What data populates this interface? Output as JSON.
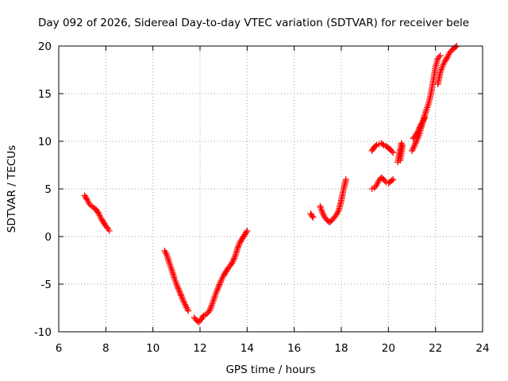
{
  "chart_data": {
    "type": "scatter",
    "title": "Day 092 of 2026, Sidereal Day-to-day VTEC variation (SDTVAR) for receiver bele",
    "xlabel": "GPS time / hours",
    "ylabel": "SDTVAR / TECUs",
    "xlim": [
      6,
      24
    ],
    "ylim": [
      -10,
      20
    ],
    "xticks": [
      "6",
      "8",
      "10",
      "12",
      "14",
      "16",
      "18",
      "20",
      "22",
      "24"
    ],
    "yticks": [
      "-10",
      "-5",
      "0",
      "5",
      "10",
      "15",
      "20"
    ],
    "grid": true,
    "marker_color": "#ff0000",
    "series": [
      {
        "name": "SDTVAR",
        "segments": [
          [
            [
              7.1,
              4.3
            ],
            [
              7.2,
              3.9
            ],
            [
              7.3,
              3.4
            ],
            [
              7.5,
              3.0
            ],
            [
              7.6,
              2.8
            ],
            [
              7.7,
              2.4
            ],
            [
              7.8,
              1.9
            ],
            [
              7.9,
              1.5
            ],
            [
              8.0,
              1.1
            ],
            [
              8.1,
              0.8
            ],
            [
              8.15,
              0.6
            ]
          ],
          [
            [
              10.5,
              -1.5
            ],
            [
              10.6,
              -2.0
            ],
            [
              10.7,
              -2.8
            ],
            [
              10.8,
              -3.5
            ],
            [
              10.9,
              -4.3
            ],
            [
              11.0,
              -5.0
            ],
            [
              11.1,
              -5.6
            ],
            [
              11.2,
              -6.2
            ],
            [
              11.3,
              -6.8
            ],
            [
              11.4,
              -7.3
            ],
            [
              11.5,
              -7.8
            ]
          ],
          [
            [
              11.75,
              -8.5
            ],
            [
              11.85,
              -8.8
            ],
            [
              11.95,
              -9.0
            ],
            [
              12.05,
              -8.7
            ],
            [
              12.15,
              -8.3
            ],
            [
              12.3,
              -8.1
            ],
            [
              12.4,
              -7.8
            ],
            [
              12.5,
              -7.2
            ],
            [
              12.6,
              -6.5
            ],
            [
              12.7,
              -5.8
            ],
            [
              12.8,
              -5.2
            ],
            [
              12.9,
              -4.6
            ],
            [
              13.0,
              -4.1
            ],
            [
              13.1,
              -3.7
            ],
            [
              13.2,
              -3.3
            ],
            [
              13.3,
              -3.0
            ],
            [
              13.4,
              -2.6
            ],
            [
              13.5,
              -2.0
            ],
            [
              13.6,
              -1.2
            ],
            [
              13.7,
              -0.6
            ],
            [
              13.8,
              -0.2
            ],
            [
              13.9,
              0.2
            ],
            [
              14.0,
              0.6
            ]
          ],
          [
            [
              16.7,
              2.4
            ],
            [
              16.8,
              2.0
            ]
          ],
          [
            [
              17.1,
              3.2
            ],
            [
              17.2,
              2.5
            ],
            [
              17.3,
              2.0
            ],
            [
              17.4,
              1.7
            ],
            [
              17.5,
              1.5
            ],
            [
              17.6,
              1.7
            ],
            [
              17.7,
              2.0
            ],
            [
              17.8,
              2.3
            ],
            [
              17.9,
              2.8
            ],
            [
              18.0,
              3.8
            ],
            [
              18.1,
              5.0
            ],
            [
              18.2,
              6.0
            ]
          ],
          [
            [
              19.3,
              5.0
            ],
            [
              19.4,
              5.1
            ],
            [
              19.5,
              5.4
            ],
            [
              19.6,
              5.9
            ],
            [
              19.7,
              6.2
            ],
            [
              19.8,
              6.0
            ],
            [
              19.9,
              5.7
            ],
            [
              20.0,
              5.6
            ],
            [
              20.1,
              5.8
            ],
            [
              20.2,
              6.0
            ]
          ],
          [
            [
              19.3,
              9.0
            ],
            [
              19.4,
              9.4
            ],
            [
              19.5,
              9.6
            ],
            [
              19.6,
              9.7
            ],
            [
              19.7,
              9.8
            ],
            [
              19.8,
              9.6
            ],
            [
              19.9,
              9.5
            ],
            [
              20.0,
              9.3
            ],
            [
              20.1,
              9.1
            ],
            [
              20.2,
              8.8
            ]
          ],
          [
            [
              20.4,
              7.8
            ],
            [
              20.45,
              8.5
            ],
            [
              20.5,
              9.2
            ],
            [
              20.55,
              9.8
            ],
            [
              20.6,
              9.5
            ],
            [
              20.5,
              8.0
            ]
          ],
          [
            [
              21.0,
              9.0
            ],
            [
              21.1,
              9.5
            ],
            [
              21.2,
              10.1
            ],
            [
              21.3,
              10.6
            ],
            [
              21.4,
              11.5
            ],
            [
              21.5,
              12.4
            ],
            [
              21.6,
              13.2
            ],
            [
              21.7,
              13.9
            ],
            [
              21.8,
              14.9
            ],
            [
              21.9,
              16.3
            ],
            [
              22.0,
              17.8
            ],
            [
              22.1,
              18.7
            ],
            [
              22.2,
              19.0
            ]
          ],
          [
            [
              21.05,
              10.3
            ],
            [
              21.15,
              10.6
            ],
            [
              21.25,
              11.0
            ],
            [
              21.35,
              11.6
            ],
            [
              21.45,
              12.0
            ],
            [
              21.55,
              12.5
            ]
          ],
          [
            [
              22.1,
              16.0
            ],
            [
              22.2,
              17.2
            ],
            [
              22.3,
              17.9
            ],
            [
              22.4,
              18.4
            ],
            [
              22.5,
              18.8
            ],
            [
              22.6,
              19.3
            ],
            [
              22.7,
              19.6
            ],
            [
              22.8,
              19.8
            ],
            [
              22.9,
              20.0
            ]
          ]
        ]
      }
    ]
  }
}
